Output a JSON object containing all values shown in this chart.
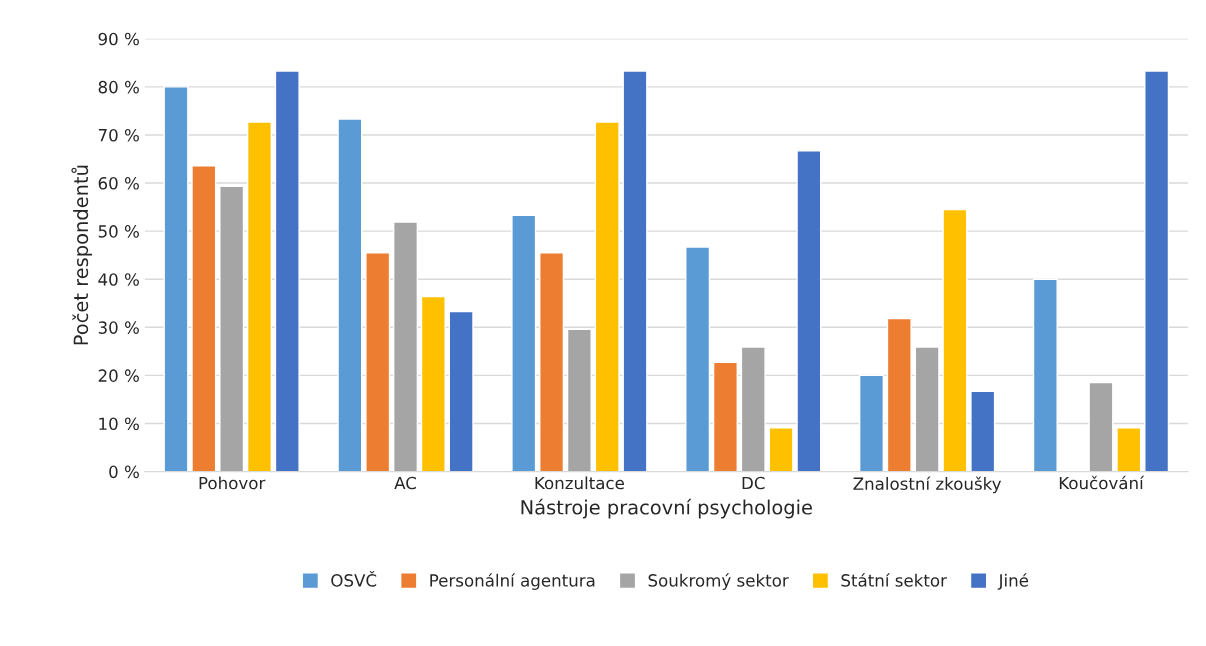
{
  "chart_data": {
    "type": "bar",
    "xlabel": "Nástroje pracovní psychologie",
    "ylabel": "Počet respondentů",
    "categories": [
      "Pohovor",
      "AC",
      "Konzultace",
      "DC",
      "Znalostní zkoušky",
      "Koučování"
    ],
    "series": [
      {
        "name": "OSVČ",
        "color": "#5b9bd5",
        "values": [
          80,
          73.3,
          53.3,
          46.7,
          20,
          40
        ]
      },
      {
        "name": "Personální agentura",
        "color": "#ed7d31",
        "values": [
          63.6,
          45.5,
          45.5,
          22.7,
          31.8,
          null
        ]
      },
      {
        "name": "Soukromý sektor",
        "color": "#a5a5a5",
        "values": [
          59.3,
          51.9,
          29.6,
          25.9,
          25.9,
          18.5
        ]
      },
      {
        "name": "Státní sektor",
        "color": "#ffc000",
        "values": [
          72.7,
          36.4,
          72.7,
          9.1,
          54.5,
          9.1
        ]
      },
      {
        "name": "Jiné",
        "color": "#4472c4",
        "values": [
          83.3,
          33.3,
          83.3,
          66.7,
          16.7,
          83.3
        ]
      }
    ],
    "ylim": [
      0,
      90
    ],
    "yticks": [
      {
        "value": 0,
        "label": "0 %"
      },
      {
        "value": 10,
        "label": "10 %"
      },
      {
        "value": 20,
        "label": "20 %"
      },
      {
        "value": 30,
        "label": "30 %"
      },
      {
        "value": 40,
        "label": "40 %"
      },
      {
        "value": 50,
        "label": "50 %"
      },
      {
        "value": 60,
        "label": "60 %"
      },
      {
        "value": 70,
        "label": "70 %"
      },
      {
        "value": 80,
        "label": "80 %"
      },
      {
        "value": 90,
        "label": "90 %"
      }
    ],
    "grid": "y",
    "legend": "bottom"
  }
}
